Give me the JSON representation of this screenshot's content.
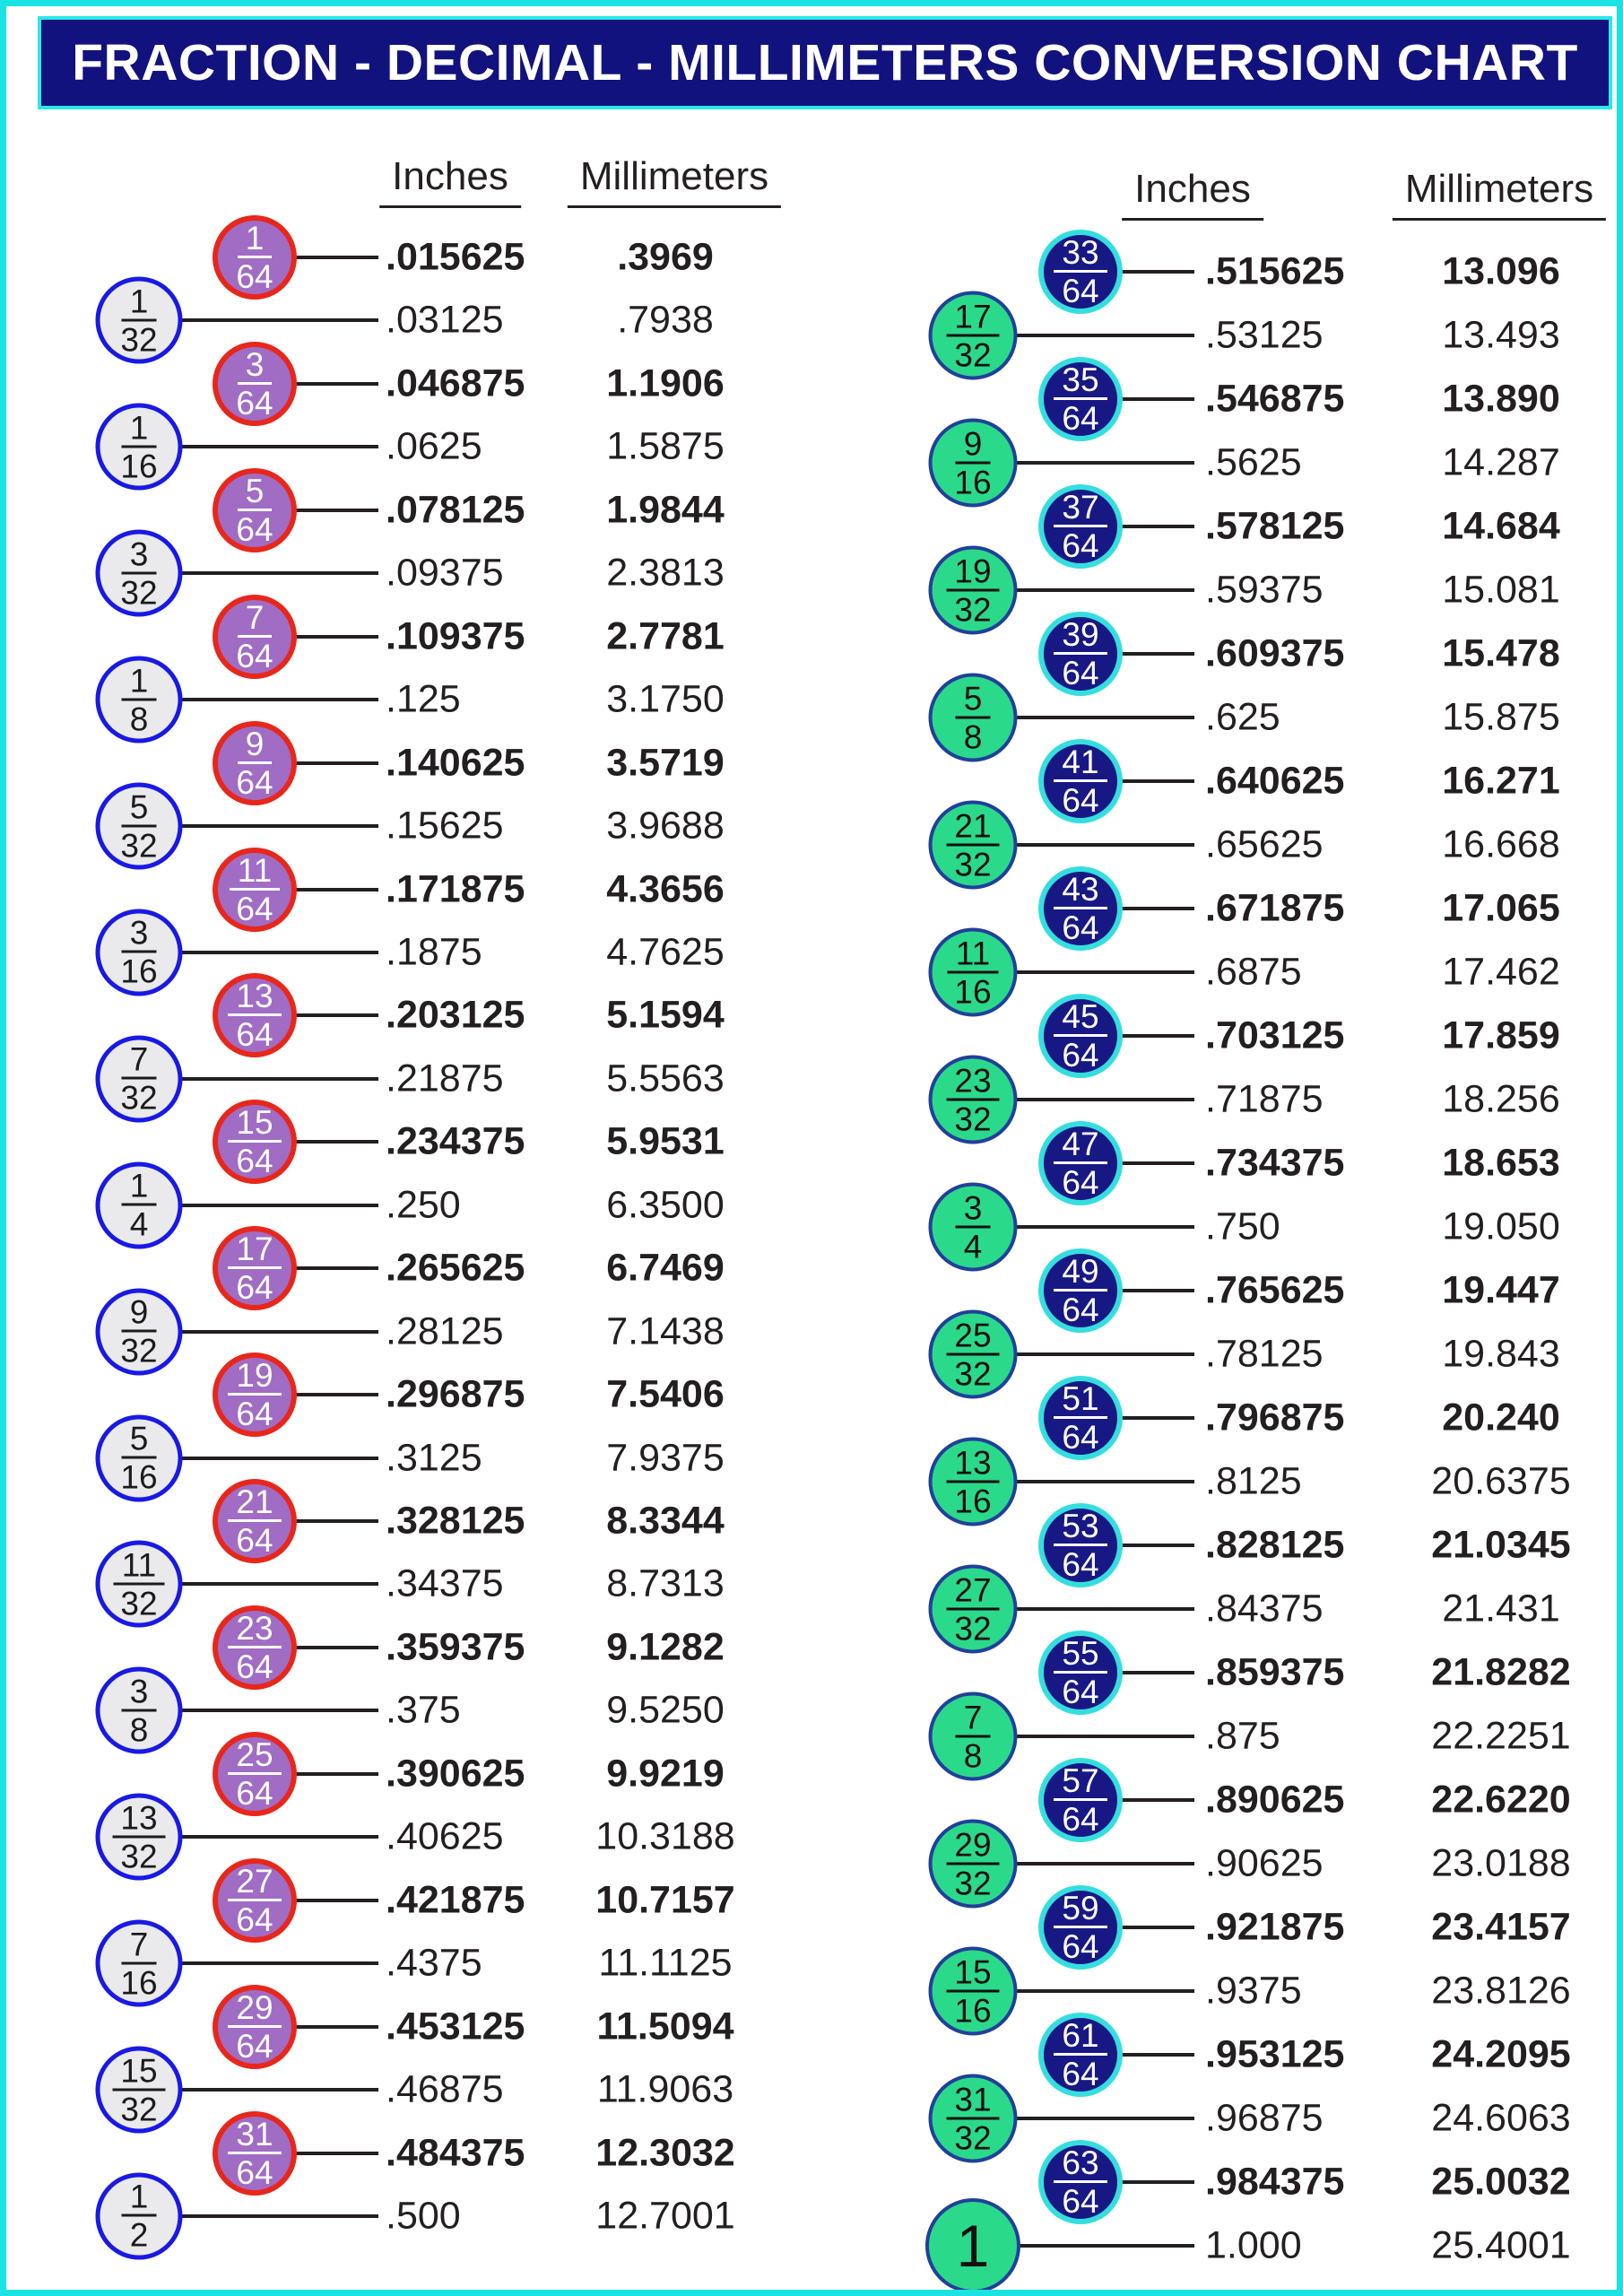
{
  "page": {
    "title": "FRACTION - DECIMAL - MILLIMETERS CONVERSION CHART"
  },
  "colors": {
    "page_frame_cyan": "#1BE3E3",
    "title_bg_navy": "#12127E",
    "title_border_cyan": "#2BE8E8",
    "title_text": "#FFFFFF",
    "text_black": "#231F20",
    "left_64th_fill_purple": "#A06CC4",
    "left_64th_border_red": "#E8271B",
    "left_major_fill_gray": "#EAEAEC",
    "left_major_border_blue": "#1919E6",
    "right_64th_fill_navy": "#181885",
    "right_64th_border_cyan": "#35DEDE",
    "right_major_fill_green": "#2BD98A",
    "right_major_border_darkblue": "#20409A"
  },
  "columns": {
    "left": {
      "header_inches": "Inches",
      "header_millimeters": "Millimeters",
      "rows": [
        {
          "num": "1",
          "den": "64",
          "kind": "sixtyfourth",
          "inches": ".015625",
          "mm": ".3969",
          "bold": true
        },
        {
          "num": "1",
          "den": "32",
          "kind": "major",
          "inches": ".03125",
          "mm": ".7938",
          "bold": false
        },
        {
          "num": "3",
          "den": "64",
          "kind": "sixtyfourth",
          "inches": ".046875",
          "mm": "1.1906",
          "bold": true
        },
        {
          "num": "1",
          "den": "16",
          "kind": "major",
          "inches": ".0625",
          "mm": "1.5875",
          "bold": false
        },
        {
          "num": "5",
          "den": "64",
          "kind": "sixtyfourth",
          "inches": ".078125",
          "mm": "1.9844",
          "bold": true
        },
        {
          "num": "3",
          "den": "32",
          "kind": "major",
          "inches": ".09375",
          "mm": "2.3813",
          "bold": false
        },
        {
          "num": "7",
          "den": "64",
          "kind": "sixtyfourth",
          "inches": ".109375",
          "mm": "2.7781",
          "bold": true
        },
        {
          "num": "1",
          "den": "8",
          "kind": "major",
          "inches": ".125",
          "mm": "3.1750",
          "bold": false
        },
        {
          "num": "9",
          "den": "64",
          "kind": "sixtyfourth",
          "inches": ".140625",
          "mm": "3.5719",
          "bold": true
        },
        {
          "num": "5",
          "den": "32",
          "kind": "major",
          "inches": ".15625",
          "mm": "3.9688",
          "bold": false
        },
        {
          "num": "11",
          "den": "64",
          "kind": "sixtyfourth",
          "inches": ".171875",
          "mm": "4.3656",
          "bold": true
        },
        {
          "num": "3",
          "den": "16",
          "kind": "major",
          "inches": ".1875",
          "mm": "4.7625",
          "bold": false
        },
        {
          "num": "13",
          "den": "64",
          "kind": "sixtyfourth",
          "inches": ".203125",
          "mm": "5.1594",
          "bold": true
        },
        {
          "num": "7",
          "den": "32",
          "kind": "major",
          "inches": ".21875",
          "mm": "5.5563",
          "bold": false
        },
        {
          "num": "15",
          "den": "64",
          "kind": "sixtyfourth",
          "inches": ".234375",
          "mm": "5.9531",
          "bold": true
        },
        {
          "num": "1",
          "den": "4",
          "kind": "major",
          "inches": ".250",
          "mm": "6.3500",
          "bold": false
        },
        {
          "num": "17",
          "den": "64",
          "kind": "sixtyfourth",
          "inches": ".265625",
          "mm": "6.7469",
          "bold": true
        },
        {
          "num": "9",
          "den": "32",
          "kind": "major",
          "inches": ".28125",
          "mm": "7.1438",
          "bold": false
        },
        {
          "num": "19",
          "den": "64",
          "kind": "sixtyfourth",
          "inches": ".296875",
          "mm": "7.5406",
          "bold": true
        },
        {
          "num": "5",
          "den": "16",
          "kind": "major",
          "inches": ".3125",
          "mm": "7.9375",
          "bold": false
        },
        {
          "num": "21",
          "den": "64",
          "kind": "sixtyfourth",
          "inches": ".328125",
          "mm": "8.3344",
          "bold": true
        },
        {
          "num": "11",
          "den": "32",
          "kind": "major",
          "inches": ".34375",
          "mm": "8.7313",
          "bold": false
        },
        {
          "num": "23",
          "den": "64",
          "kind": "sixtyfourth",
          "inches": ".359375",
          "mm": "9.1282",
          "bold": true
        },
        {
          "num": "3",
          "den": "8",
          "kind": "major",
          "inches": ".375",
          "mm": "9.5250",
          "bold": false
        },
        {
          "num": "25",
          "den": "64",
          "kind": "sixtyfourth",
          "inches": ".390625",
          "mm": "9.9219",
          "bold": true
        },
        {
          "num": "13",
          "den": "32",
          "kind": "major",
          "inches": ".40625",
          "mm": "10.3188",
          "bold": false
        },
        {
          "num": "27",
          "den": "64",
          "kind": "sixtyfourth",
          "inches": ".421875",
          "mm": "10.7157",
          "bold": true
        },
        {
          "num": "7",
          "den": "16",
          "kind": "major",
          "inches": ".4375",
          "mm": "11.1125",
          "bold": false
        },
        {
          "num": "29",
          "den": "64",
          "kind": "sixtyfourth",
          "inches": ".453125",
          "mm": "11.5094",
          "bold": true
        },
        {
          "num": "15",
          "den": "32",
          "kind": "major",
          "inches": ".46875",
          "mm": "11.9063",
          "bold": false
        },
        {
          "num": "31",
          "den": "64",
          "kind": "sixtyfourth",
          "inches": ".484375",
          "mm": "12.3032",
          "bold": true
        },
        {
          "num": "1",
          "den": "2",
          "kind": "major",
          "inches": ".500",
          "mm": "12.7001",
          "bold": false
        }
      ]
    },
    "right": {
      "header_inches": "Inches",
      "header_millimeters": "Millimeters",
      "rows": [
        {
          "num": "33",
          "den": "64",
          "kind": "sixtyfourth",
          "inches": ".515625",
          "mm": "13.096",
          "bold": true
        },
        {
          "num": "17",
          "den": "32",
          "kind": "major",
          "inches": ".53125",
          "mm": "13.493",
          "bold": false
        },
        {
          "num": "35",
          "den": "64",
          "kind": "sixtyfourth",
          "inches": ".546875",
          "mm": "13.890",
          "bold": true
        },
        {
          "num": "9",
          "den": "16",
          "kind": "major",
          "inches": ".5625",
          "mm": "14.287",
          "bold": false
        },
        {
          "num": "37",
          "den": "64",
          "kind": "sixtyfourth",
          "inches": ".578125",
          "mm": "14.684",
          "bold": true
        },
        {
          "num": "19",
          "den": "32",
          "kind": "major",
          "inches": ".59375",
          "mm": "15.081",
          "bold": false
        },
        {
          "num": "39",
          "den": "64",
          "kind": "sixtyfourth",
          "inches": ".609375",
          "mm": "15.478",
          "bold": true
        },
        {
          "num": "5",
          "den": "8",
          "kind": "major",
          "inches": ".625",
          "mm": "15.875",
          "bold": false
        },
        {
          "num": "41",
          "den": "64",
          "kind": "sixtyfourth",
          "inches": ".640625",
          "mm": "16.271",
          "bold": true
        },
        {
          "num": "21",
          "den": "32",
          "kind": "major",
          "inches": ".65625",
          "mm": "16.668",
          "bold": false
        },
        {
          "num": "43",
          "den": "64",
          "kind": "sixtyfourth",
          "inches": ".671875",
          "mm": "17.065",
          "bold": true
        },
        {
          "num": "11",
          "den": "16",
          "kind": "major",
          "inches": ".6875",
          "mm": "17.462",
          "bold": false
        },
        {
          "num": "45",
          "den": "64",
          "kind": "sixtyfourth",
          "inches": ".703125",
          "mm": "17.859",
          "bold": true
        },
        {
          "num": "23",
          "den": "32",
          "kind": "major",
          "inches": ".71875",
          "mm": "18.256",
          "bold": false
        },
        {
          "num": "47",
          "den": "64",
          "kind": "sixtyfourth",
          "inches": ".734375",
          "mm": "18.653",
          "bold": true
        },
        {
          "num": "3",
          "den": "4",
          "kind": "major",
          "inches": ".750",
          "mm": "19.050",
          "bold": false
        },
        {
          "num": "49",
          "den": "64",
          "kind": "sixtyfourth",
          "inches": ".765625",
          "mm": "19.447",
          "bold": true
        },
        {
          "num": "25",
          "den": "32",
          "kind": "major",
          "inches": ".78125",
          "mm": "19.843",
          "bold": false
        },
        {
          "num": "51",
          "den": "64",
          "kind": "sixtyfourth",
          "inches": ".796875",
          "mm": "20.240",
          "bold": true
        },
        {
          "num": "13",
          "den": "16",
          "kind": "major",
          "inches": ".8125",
          "mm": "20.6375",
          "bold": false
        },
        {
          "num": "53",
          "den": "64",
          "kind": "sixtyfourth",
          "inches": ".828125",
          "mm": "21.0345",
          "bold": true
        },
        {
          "num": "27",
          "den": "32",
          "kind": "major",
          "inches": ".84375",
          "mm": "21.431",
          "bold": false
        },
        {
          "num": "55",
          "den": "64",
          "kind": "sixtyfourth",
          "inches": ".859375",
          "mm": "21.8282",
          "bold": true
        },
        {
          "num": "7",
          "den": "8",
          "kind": "major",
          "inches": ".875",
          "mm": "22.2251",
          "bold": false
        },
        {
          "num": "57",
          "den": "64",
          "kind": "sixtyfourth",
          "inches": ".890625",
          "mm": "22.6220",
          "bold": true
        },
        {
          "num": "29",
          "den": "32",
          "kind": "major",
          "inches": ".90625",
          "mm": "23.0188",
          "bold": false
        },
        {
          "num": "59",
          "den": "64",
          "kind": "sixtyfourth",
          "inches": ".921875",
          "mm": "23.4157",
          "bold": true
        },
        {
          "num": "15",
          "den": "16",
          "kind": "major",
          "inches": ".9375",
          "mm": "23.8126",
          "bold": false
        },
        {
          "num": "61",
          "den": "64",
          "kind": "sixtyfourth",
          "inches": ".953125",
          "mm": "24.2095",
          "bold": true
        },
        {
          "num": "31",
          "den": "32",
          "kind": "major",
          "inches": ".96875",
          "mm": "24.6063",
          "bold": false
        },
        {
          "num": "63",
          "den": "64",
          "kind": "sixtyfourth",
          "inches": ".984375",
          "mm": "25.0032",
          "bold": true
        },
        {
          "num": "1",
          "den": "",
          "kind": "whole",
          "inches": "1.000",
          "mm": "25.4001",
          "bold": false
        }
      ]
    }
  }
}
